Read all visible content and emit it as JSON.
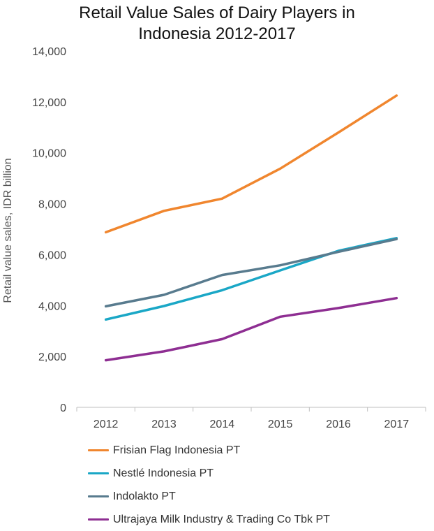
{
  "chart_data": {
    "type": "line",
    "title_lines": [
      "Retail Value Sales of Dairy Players in",
      "Indonesia 2012-2017"
    ],
    "ylabel": "Retail value sales, IDR billion",
    "xlabel": "",
    "categories": [
      "2012",
      "2013",
      "2014",
      "2015",
      "2016",
      "2017"
    ],
    "ylim": [
      0,
      14000
    ],
    "yticks": [
      0,
      2000,
      4000,
      6000,
      8000,
      10000,
      12000,
      14000
    ],
    "ytick_labels": [
      "0",
      "2,000",
      "4,000",
      "6,000",
      "8,000",
      "10,000",
      "12,000",
      "14,000"
    ],
    "grid": false,
    "legend_position": "bottom",
    "series": [
      {
        "name": "Frisian Flag Indonesia PT",
        "color": "#F0862E",
        "values": [
          6880,
          7720,
          8200,
          9380,
          10800,
          12250
        ]
      },
      {
        "name": "Nestlé Indonesia PT",
        "color": "#1AA7C6",
        "values": [
          3450,
          3980,
          4600,
          5380,
          6150,
          6650
        ]
      },
      {
        "name": "Indolakto PT",
        "color": "#587B8E",
        "values": [
          3970,
          4420,
          5200,
          5580,
          6110,
          6610
        ]
      },
      {
        "name": "Ultrajaya Milk Industry & Trading Co Tbk PT",
        "color": "#8E2E92",
        "values": [
          1850,
          2200,
          2680,
          3560,
          3900,
          4290
        ]
      }
    ]
  }
}
